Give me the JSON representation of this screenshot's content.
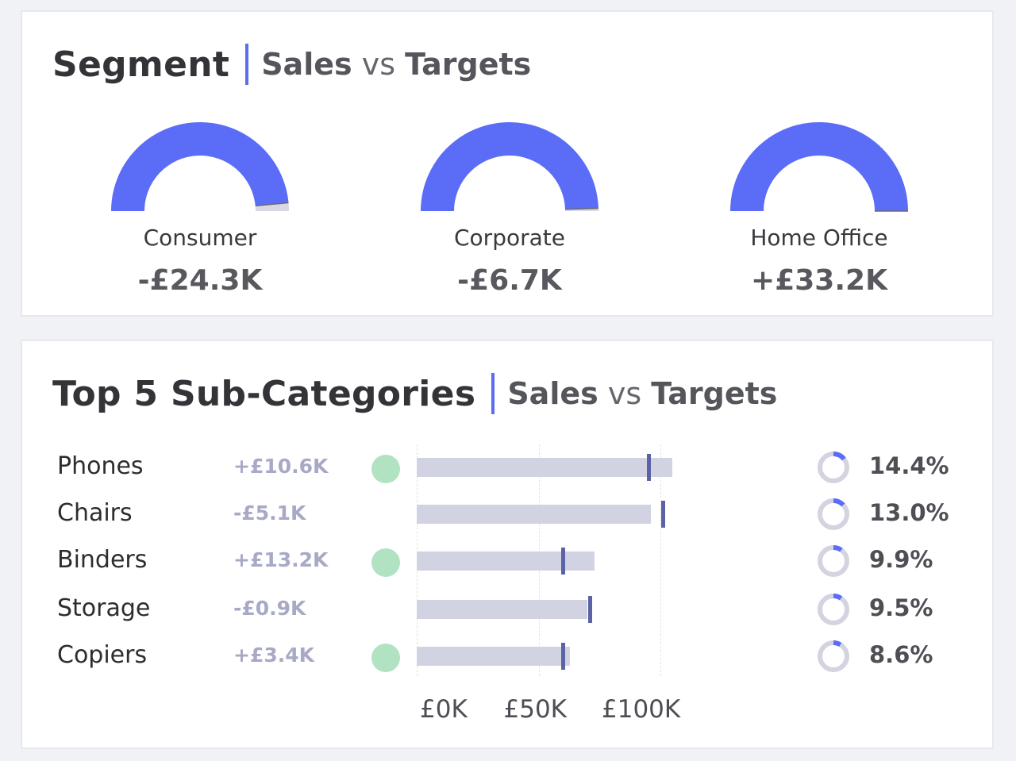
{
  "colors": {
    "accent": "#5b6cf6",
    "gauge_fill": "#5b6cf6",
    "gauge_track": "#d8d9e4",
    "bar": "#d2d3e2",
    "target": "#5a63a6",
    "dot": "#b1e2c2",
    "diff_text": "#a8a9c6"
  },
  "segment": {
    "title": "Segment",
    "sub_sales": "Sales",
    "sub_vs": "vs",
    "sub_targets": "Targets",
    "gauges": [
      {
        "label": "Consumer",
        "value": "-£24.3K",
        "fraction": 0.97
      },
      {
        "label": "Corporate",
        "value": "-£6.7K",
        "fraction": 0.99
      },
      {
        "label": "Home Office",
        "value": "+£33.2K",
        "fraction": 1.0
      }
    ]
  },
  "subcategories": {
    "title": "Top 5 Sub-Categories",
    "sub_sales": "Sales",
    "sub_vs": "vs",
    "sub_targets": "Targets"
  },
  "chart_data": {
    "type": "bar",
    "title": "Top 5 Sub-Categories | Sales vs Targets",
    "categories": [
      "Phones",
      "Chairs",
      "Binders",
      "Storage",
      "Copiers"
    ],
    "series": [
      {
        "name": "Sales",
        "values": [
          105,
          96,
          73,
          70,
          63
        ]
      },
      {
        "name": "Target",
        "values": [
          95,
          101,
          60,
          71,
          60
        ]
      }
    ],
    "differences": [
      "+£10.6K",
      "-£5.1K",
      "+£13.2K",
      "-£0.9K",
      "+£3.4K"
    ],
    "above_target": [
      true,
      false,
      true,
      false,
      true
    ],
    "share_of_sales": [
      "14.4%",
      "13.0%",
      "9.9%",
      "9.5%",
      "8.6%"
    ],
    "share_values": [
      14.4,
      13.0,
      9.9,
      9.5,
      8.6
    ],
    "x_ticks": [
      "£0K",
      "£50K",
      "£100K"
    ],
    "x_tick_values": [
      0,
      50,
      100
    ],
    "xlim": [
      0,
      100
    ],
    "xlabel": "",
    "ylabel": ""
  }
}
